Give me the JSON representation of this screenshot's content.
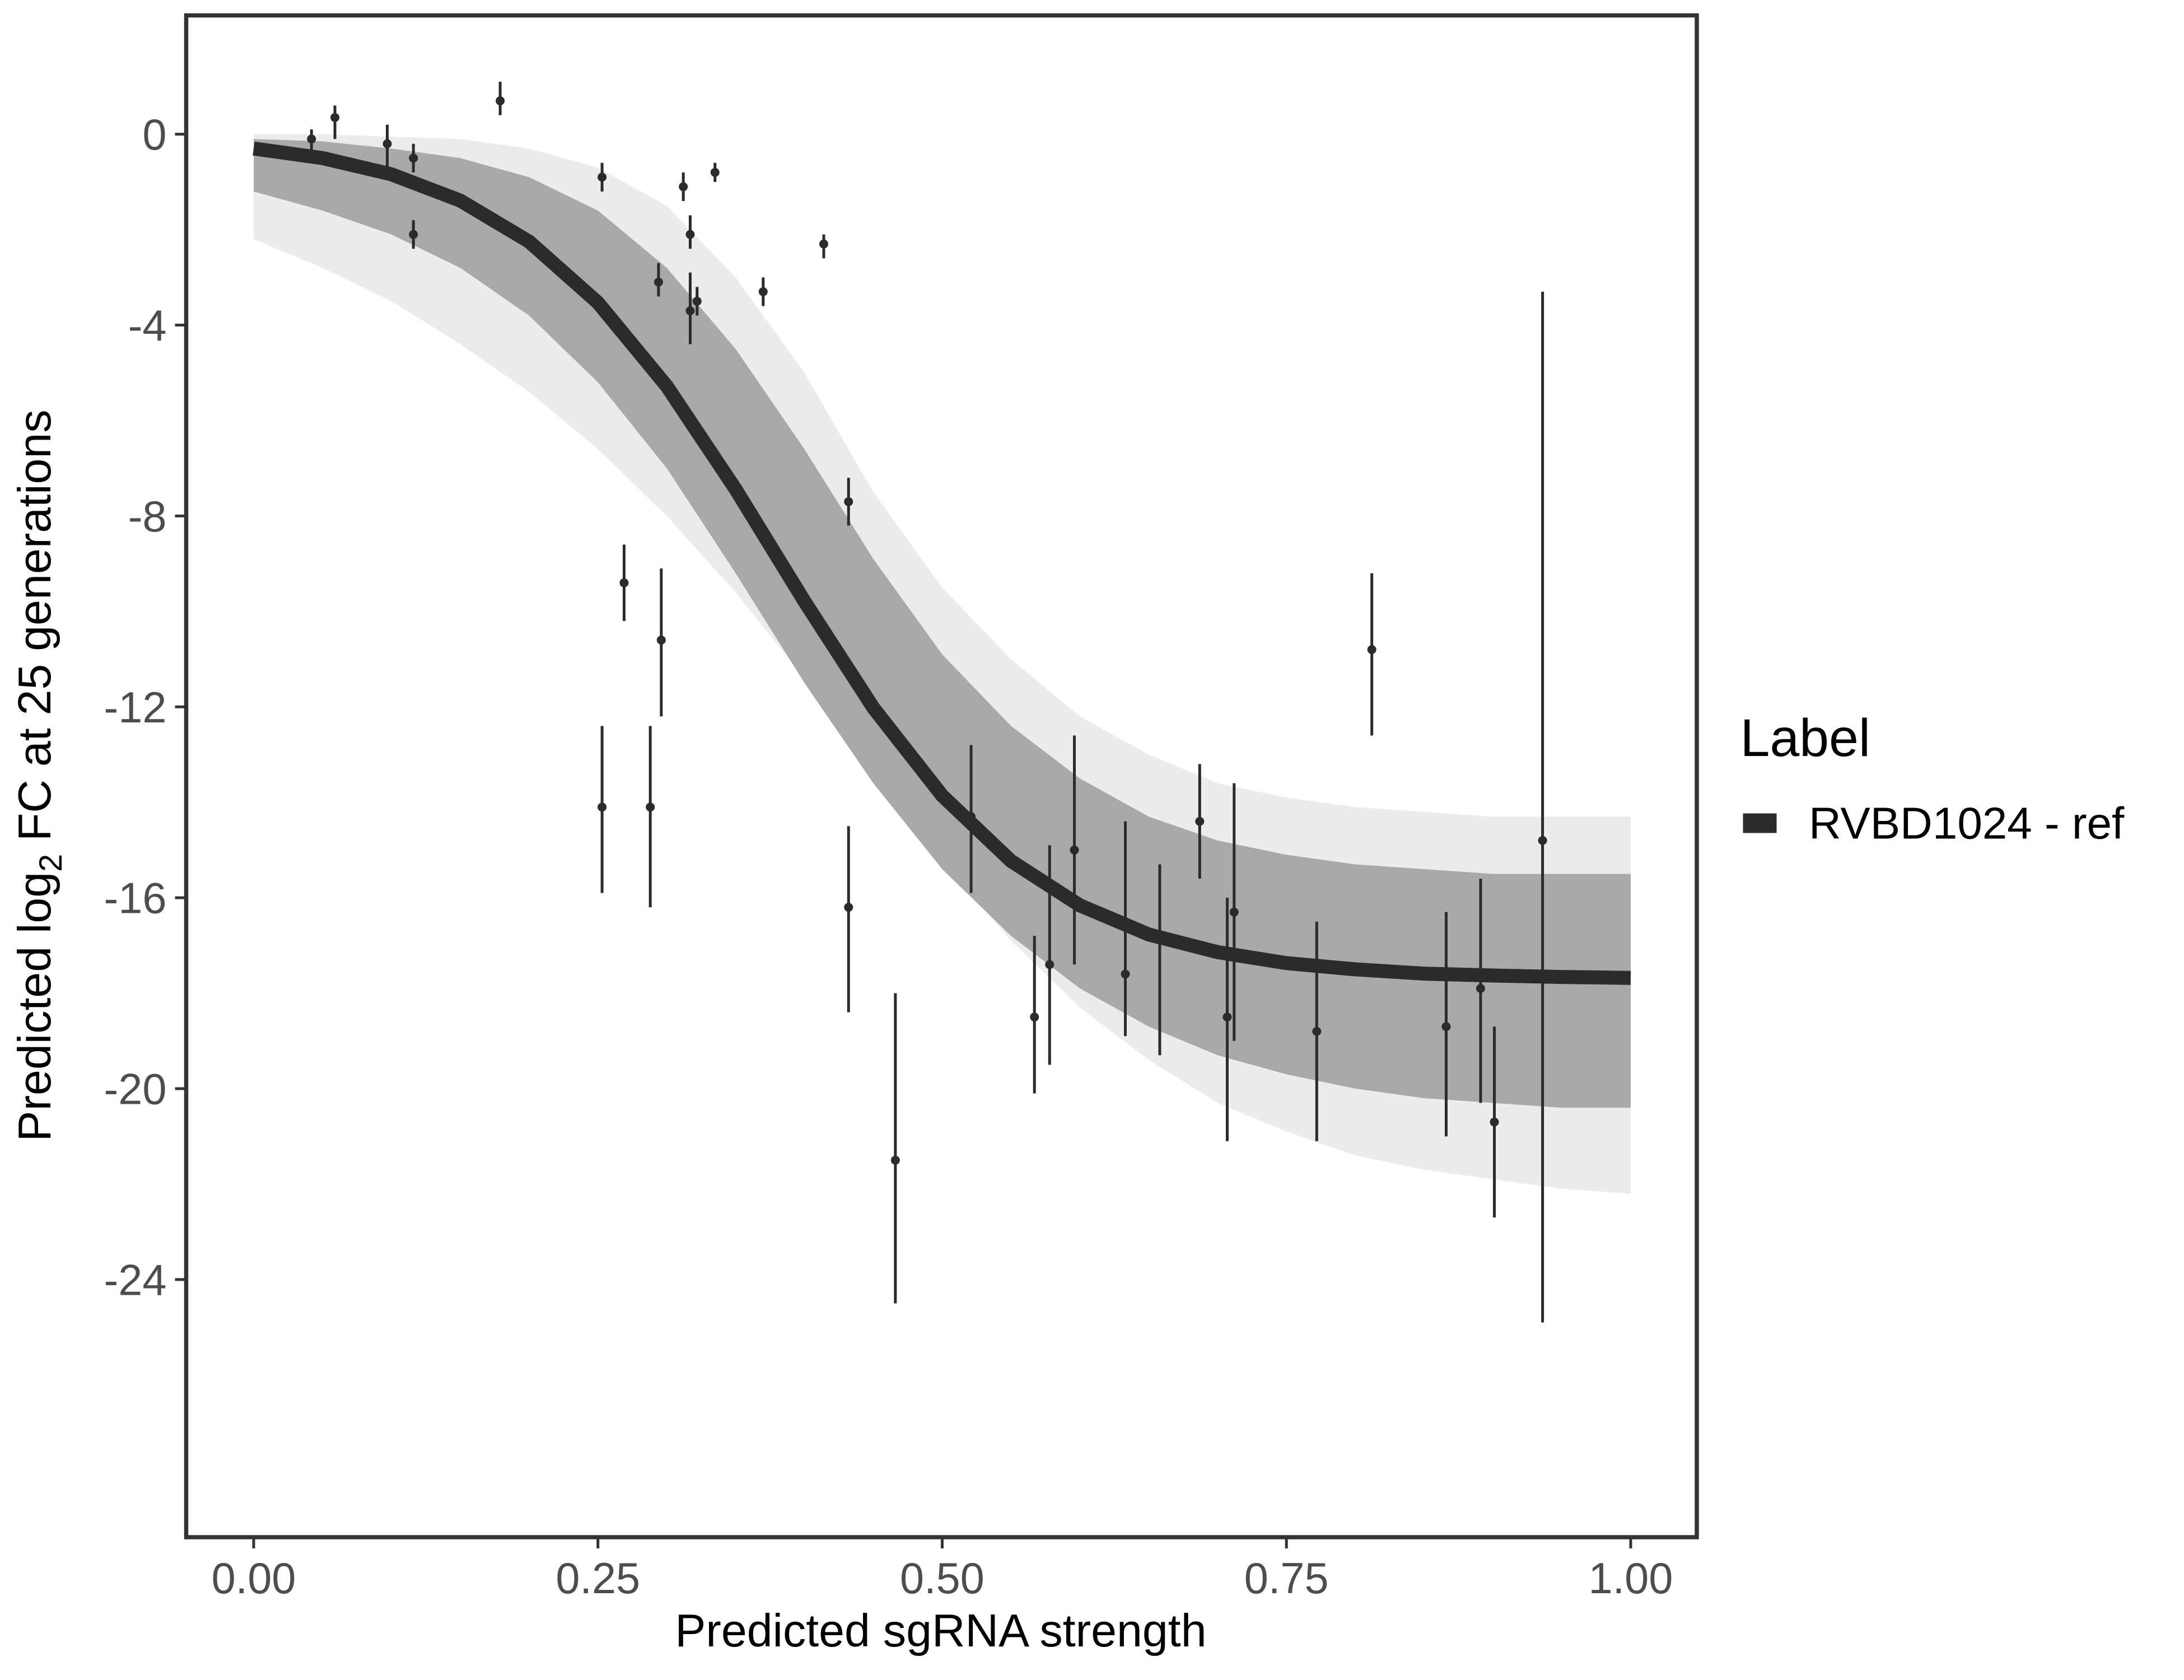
{
  "chart_data": {
    "type": "scatter",
    "xlabel": "Predicted sgRNA strength",
    "ylabel_parts": [
      "Predicted  log",
      "2",
      " FC at 25 generations"
    ],
    "legend_title": "Label",
    "xlim": [
      -0.049,
      1.048
    ],
    "ylim": [
      -29.4,
      2.49
    ],
    "xticks": [
      {
        "value": 0,
        "label": "0.00"
      },
      {
        "value": 0.25,
        "label": "0.25"
      },
      {
        "value": 0.5,
        "label": "0.50"
      },
      {
        "value": 0.75,
        "label": "0.75"
      },
      {
        "value": 1,
        "label": "1.00"
      }
    ],
    "yticks": [
      0,
      -4,
      -8,
      -12,
      -16,
      -20,
      -24
    ],
    "grid": false,
    "point_color": "#2b2b2b",
    "x": [
      0.042,
      0.059,
      0.097,
      0.116,
      0.116,
      0.179,
      0.253,
      0.253,
      0.269,
      0.288,
      0.294,
      0.296,
      0.312,
      0.317,
      0.317,
      0.322,
      0.335,
      0.37,
      0.414,
      0.432,
      0.432,
      0.466,
      0.521,
      0.567,
      0.578,
      0.596,
      0.633,
      0.658,
      0.687,
      0.707,
      0.712,
      0.772,
      0.812,
      0.866,
      0.891,
      0.901,
      0.936
    ],
    "values": [
      -0.1,
      0.35,
      -0.2,
      -0.5,
      -2.1,
      0.7,
      -0.9,
      -14.1,
      -9.4,
      -14.1,
      -3.1,
      -10.6,
      -1.1,
      -2.1,
      -3.7,
      -3.5,
      -0.8,
      -3.3,
      -2.3,
      -7.7,
      -16.2,
      -21.5,
      -14.3,
      -18.5,
      -17.4,
      -15.0,
      -17.6,
      -16.8,
      -14.4,
      -18.5,
      -16.3,
      -18.8,
      -10.8,
      -18.7,
      -17.9,
      -20.7,
      -14.8
    ],
    "err_low": [
      -0.5,
      -0.1,
      -0.8,
      -0.8,
      -2.4,
      0.4,
      -1.2,
      -15.9,
      -10.2,
      -16.2,
      -3.4,
      -12.2,
      -1.4,
      -2.4,
      -4.4,
      -3.8,
      -1.0,
      -3.6,
      -2.6,
      -8.2,
      -18.4,
      -24.5,
      -15.9,
      -20.1,
      -19.5,
      -17.4,
      -18.9,
      -19.3,
      -15.6,
      -21.1,
      -19.0,
      -21.1,
      -12.6,
      -21.0,
      -20.3,
      -22.7,
      -24.9
    ],
    "err_high": [
      0.1,
      0.6,
      0.2,
      -0.2,
      -1.8,
      1.1,
      -0.6,
      -12.4,
      -8.6,
      -12.4,
      -2.7,
      -9.1,
      -0.8,
      -1.7,
      -2.9,
      -3.2,
      -0.6,
      -3.0,
      -2.1,
      -7.2,
      -14.5,
      -18.0,
      -12.8,
      -16.8,
      -14.9,
      -12.6,
      -14.4,
      -15.3,
      -13.2,
      -16.0,
      -13.6,
      -16.5,
      -9.2,
      -16.3,
      -15.6,
      -18.7,
      -3.3
    ],
    "curve_x": [
      0,
      0.05,
      0.1,
      0.15,
      0.2,
      0.25,
      0.3,
      0.35,
      0.4,
      0.45,
      0.5,
      0.55,
      0.6,
      0.65,
      0.7,
      0.75,
      0.8,
      0.85,
      0.9,
      0.95,
      1.0
    ],
    "bands": [
      {
        "color": "#ececec",
        "upper": [
          0,
          0,
          -0.05,
          -0.1,
          -0.3,
          -0.7,
          -1.5,
          -3,
          -5,
          -7.5,
          -9.5,
          -11,
          -12.2,
          -13,
          -13.6,
          -13.9,
          -14.1,
          -14.2,
          -14.3,
          -14.3,
          -14.3
        ],
        "lower": [
          -2.2,
          -2.8,
          -3.5,
          -4.4,
          -5.4,
          -6.6,
          -8,
          -9.6,
          -11.4,
          -13.3,
          -15.2,
          -16.9,
          -18.3,
          -19.4,
          -20.3,
          -20.9,
          -21.4,
          -21.7,
          -21.9,
          -22.1,
          -22.2
        ]
      },
      {
        "color": "#a9a9a9",
        "upper": [
          -0.1,
          -0.15,
          -0.3,
          -0.5,
          -0.9,
          -1.6,
          -2.8,
          -4.5,
          -6.6,
          -8.9,
          -10.9,
          -12.4,
          -13.5,
          -14.3,
          -14.8,
          -15.1,
          -15.3,
          -15.4,
          -15.5,
          -15.5,
          -15.5
        ],
        "lower": [
          -1.2,
          -1.6,
          -2.1,
          -2.8,
          -3.8,
          -5.2,
          -7.0,
          -9.2,
          -11.5,
          -13.6,
          -15.4,
          -16.8,
          -17.9,
          -18.7,
          -19.3,
          -19.7,
          -20.0,
          -20.2,
          -20.3,
          -20.4,
          -20.4
        ]
      }
    ],
    "series": [
      {
        "name": "RVBD1024 - ref",
        "color": "#2b2b2b",
        "values": [
          -0.3,
          -0.5,
          -0.84,
          -1.39,
          -2.25,
          -3.53,
          -5.28,
          -7.44,
          -9.79,
          -12.02,
          -13.86,
          -15.23,
          -16.16,
          -16.77,
          -17.14,
          -17.37,
          -17.5,
          -17.59,
          -17.63,
          -17.66,
          -17.68
        ]
      }
    ]
  }
}
